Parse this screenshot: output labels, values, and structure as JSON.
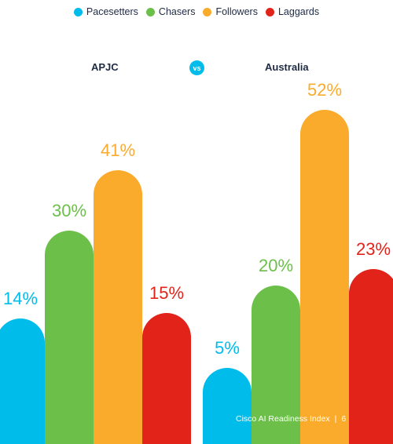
{
  "chart_data": {
    "type": "bar",
    "series": [
      {
        "name": "Pacesetters",
        "color": "#00bceb"
      },
      {
        "name": "Chasers",
        "color": "#6cc04a"
      },
      {
        "name": "Followers",
        "color": "#fbab2c"
      },
      {
        "name": "Laggards",
        "color": "#e2231a"
      }
    ],
    "groups": [
      {
        "name": "APJC",
        "values": [
          14,
          30,
          41,
          15
        ],
        "labels": [
          "14%",
          "30%",
          "41%",
          "15%"
        ]
      },
      {
        "name": "Australia",
        "values": [
          5,
          20,
          52,
          23
        ],
        "labels": [
          "5%",
          "20%",
          "52%",
          "23%"
        ]
      }
    ],
    "vs_label": "vs"
  },
  "footer": {
    "title": "Cisco AI Readiness Index",
    "separator": "|",
    "page": "6"
  }
}
